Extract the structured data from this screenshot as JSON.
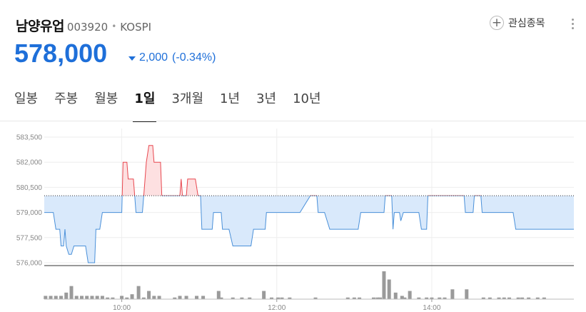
{
  "stock": {
    "name": "남양유업",
    "code": "003920",
    "separator": "•",
    "market": "KOSPI",
    "price": "578,000",
    "change_abs": "2,000",
    "change_pct": "(-0.34%)",
    "direction": "down",
    "favorite_label": "관심종목",
    "favorite_icon": "plus-icon",
    "more_icon": "kebab-menu-icon"
  },
  "tabs": [
    {
      "label": "일봉"
    },
    {
      "label": "주봉"
    },
    {
      "label": "월봉"
    },
    {
      "label": "1일",
      "active": true
    },
    {
      "label": "3개월"
    },
    {
      "label": "1년"
    },
    {
      "label": "3년"
    },
    {
      "label": "10년"
    }
  ],
  "colors": {
    "accent": "#1e6fd9",
    "up_line": "#e8474f",
    "up_fill": "#fde0e1",
    "down_line": "#4a90d9",
    "down_fill": "#d9e9fb",
    "volume": "#9a9a9a"
  },
  "chart_data": {
    "type": "line",
    "reference_price": 580000,
    "y_ticks": [
      "583,500",
      "582,000",
      "580,500",
      "579,000",
      "577,500",
      "576,000"
    ],
    "y_values": [
      583500,
      582000,
      580500,
      579000,
      577500,
      576000
    ],
    "ylim": [
      576000,
      583500
    ],
    "x_ticks": [
      "10:00",
      "12:00",
      "14:00"
    ],
    "x_tick_minutes": [
      600,
      720,
      840
    ],
    "xlim": [
      540,
      950
    ],
    "grid": true,
    "price_series": [
      [
        540,
        579000
      ],
      [
        547,
        579000
      ],
      [
        549,
        578000
      ],
      [
        552,
        578000
      ],
      [
        553,
        577000
      ],
      [
        555,
        577000
      ],
      [
        556,
        578000
      ],
      [
        557,
        577000
      ],
      [
        559,
        576500
      ],
      [
        561,
        576500
      ],
      [
        563,
        577000
      ],
      [
        572,
        577000
      ],
      [
        574,
        576000
      ],
      [
        579,
        576000
      ],
      [
        580,
        578000
      ],
      [
        583,
        578000
      ],
      [
        585,
        579000
      ],
      [
        600,
        579000
      ],
      [
        601,
        582000
      ],
      [
        604,
        582000
      ],
      [
        605,
        581000
      ],
      [
        609,
        581000
      ],
      [
        610,
        580000
      ],
      [
        611,
        579000
      ],
      [
        616,
        579000
      ],
      [
        617,
        580000
      ],
      [
        619,
        582000
      ],
      [
        621,
        583000
      ],
      [
        624,
        583000
      ],
      [
        625,
        582000
      ],
      [
        630,
        582000
      ],
      [
        631,
        580000
      ],
      [
        645,
        580000
      ],
      [
        646,
        581000
      ],
      [
        647,
        580000
      ],
      [
        650,
        580000
      ],
      [
        651,
        581000
      ],
      [
        657,
        581000
      ],
      [
        659,
        580000
      ],
      [
        661,
        580000
      ],
      [
        662,
        578000
      ],
      [
        670,
        578000
      ],
      [
        671,
        579000
      ],
      [
        677,
        579000
      ],
      [
        678,
        578000
      ],
      [
        683,
        578000
      ],
      [
        686,
        577000
      ],
      [
        700,
        577000
      ],
      [
        702,
        578000
      ],
      [
        711,
        578000
      ],
      [
        712,
        579000
      ],
      [
        738,
        579000
      ],
      [
        746,
        580000
      ],
      [
        751,
        580000
      ],
      [
        752,
        579000
      ],
      [
        757,
        579000
      ],
      [
        761,
        578000
      ],
      [
        783,
        578000
      ],
      [
        785,
        579000
      ],
      [
        803,
        579000
      ],
      [
        804,
        580000
      ],
      [
        809,
        580000
      ],
      [
        810,
        578000
      ],
      [
        811,
        579000
      ],
      [
        815,
        579000
      ],
      [
        816,
        578500
      ],
      [
        818,
        579000
      ],
      [
        830,
        579000
      ],
      [
        832,
        578000
      ],
      [
        836,
        578000
      ],
      [
        837,
        580000
      ],
      [
        865,
        580000
      ],
      [
        866,
        579000
      ],
      [
        872,
        579000
      ],
      [
        873,
        580000
      ],
      [
        878,
        580000
      ],
      [
        879,
        579000
      ],
      [
        903,
        579000
      ],
      [
        905,
        578000
      ],
      [
        950,
        578000
      ]
    ],
    "volume_series": [
      [
        541,
        2
      ],
      [
        545,
        2
      ],
      [
        549,
        2
      ],
      [
        553,
        2
      ],
      [
        557,
        4
      ],
      [
        561,
        8
      ],
      [
        565,
        2
      ],
      [
        569,
        2
      ],
      [
        573,
        2
      ],
      [
        577,
        2
      ],
      [
        581,
        2
      ],
      [
        585,
        2
      ],
      [
        589,
        1
      ],
      [
        593,
        1
      ],
      [
        600,
        2
      ],
      [
        604,
        1
      ],
      [
        608,
        3
      ],
      [
        613,
        8
      ],
      [
        617,
        1
      ],
      [
        621,
        5
      ],
      [
        625,
        2
      ],
      [
        629,
        2
      ],
      [
        641,
        1
      ],
      [
        645,
        2
      ],
      [
        650,
        2
      ],
      [
        658,
        2
      ],
      [
        663,
        2
      ],
      [
        675,
        5
      ],
      [
        677,
        1
      ],
      [
        686,
        1
      ],
      [
        693,
        1
      ],
      [
        699,
        1
      ],
      [
        710,
        5
      ],
      [
        716,
        1
      ],
      [
        721,
        1
      ],
      [
        724,
        1
      ],
      [
        730,
        1
      ],
      [
        750,
        1
      ],
      [
        775,
        1
      ],
      [
        780,
        1
      ],
      [
        784,
        1
      ],
      [
        795,
        1
      ],
      [
        798,
        1
      ],
      [
        800,
        1
      ],
      [
        803,
        17
      ],
      [
        807,
        12
      ],
      [
        812,
        4
      ],
      [
        817,
        2
      ],
      [
        819,
        1
      ],
      [
        823,
        5
      ],
      [
        830,
        1
      ],
      [
        836,
        1
      ],
      [
        840,
        1
      ],
      [
        846,
        1
      ],
      [
        850,
        1
      ],
      [
        856,
        6
      ],
      [
        867,
        6
      ],
      [
        880,
        1
      ],
      [
        885,
        1
      ],
      [
        892,
        1
      ],
      [
        896,
        1
      ],
      [
        900,
        1
      ],
      [
        907,
        1
      ],
      [
        910,
        1
      ],
      [
        915,
        1
      ],
      [
        922,
        1
      ],
      [
        927,
        1
      ]
    ]
  }
}
